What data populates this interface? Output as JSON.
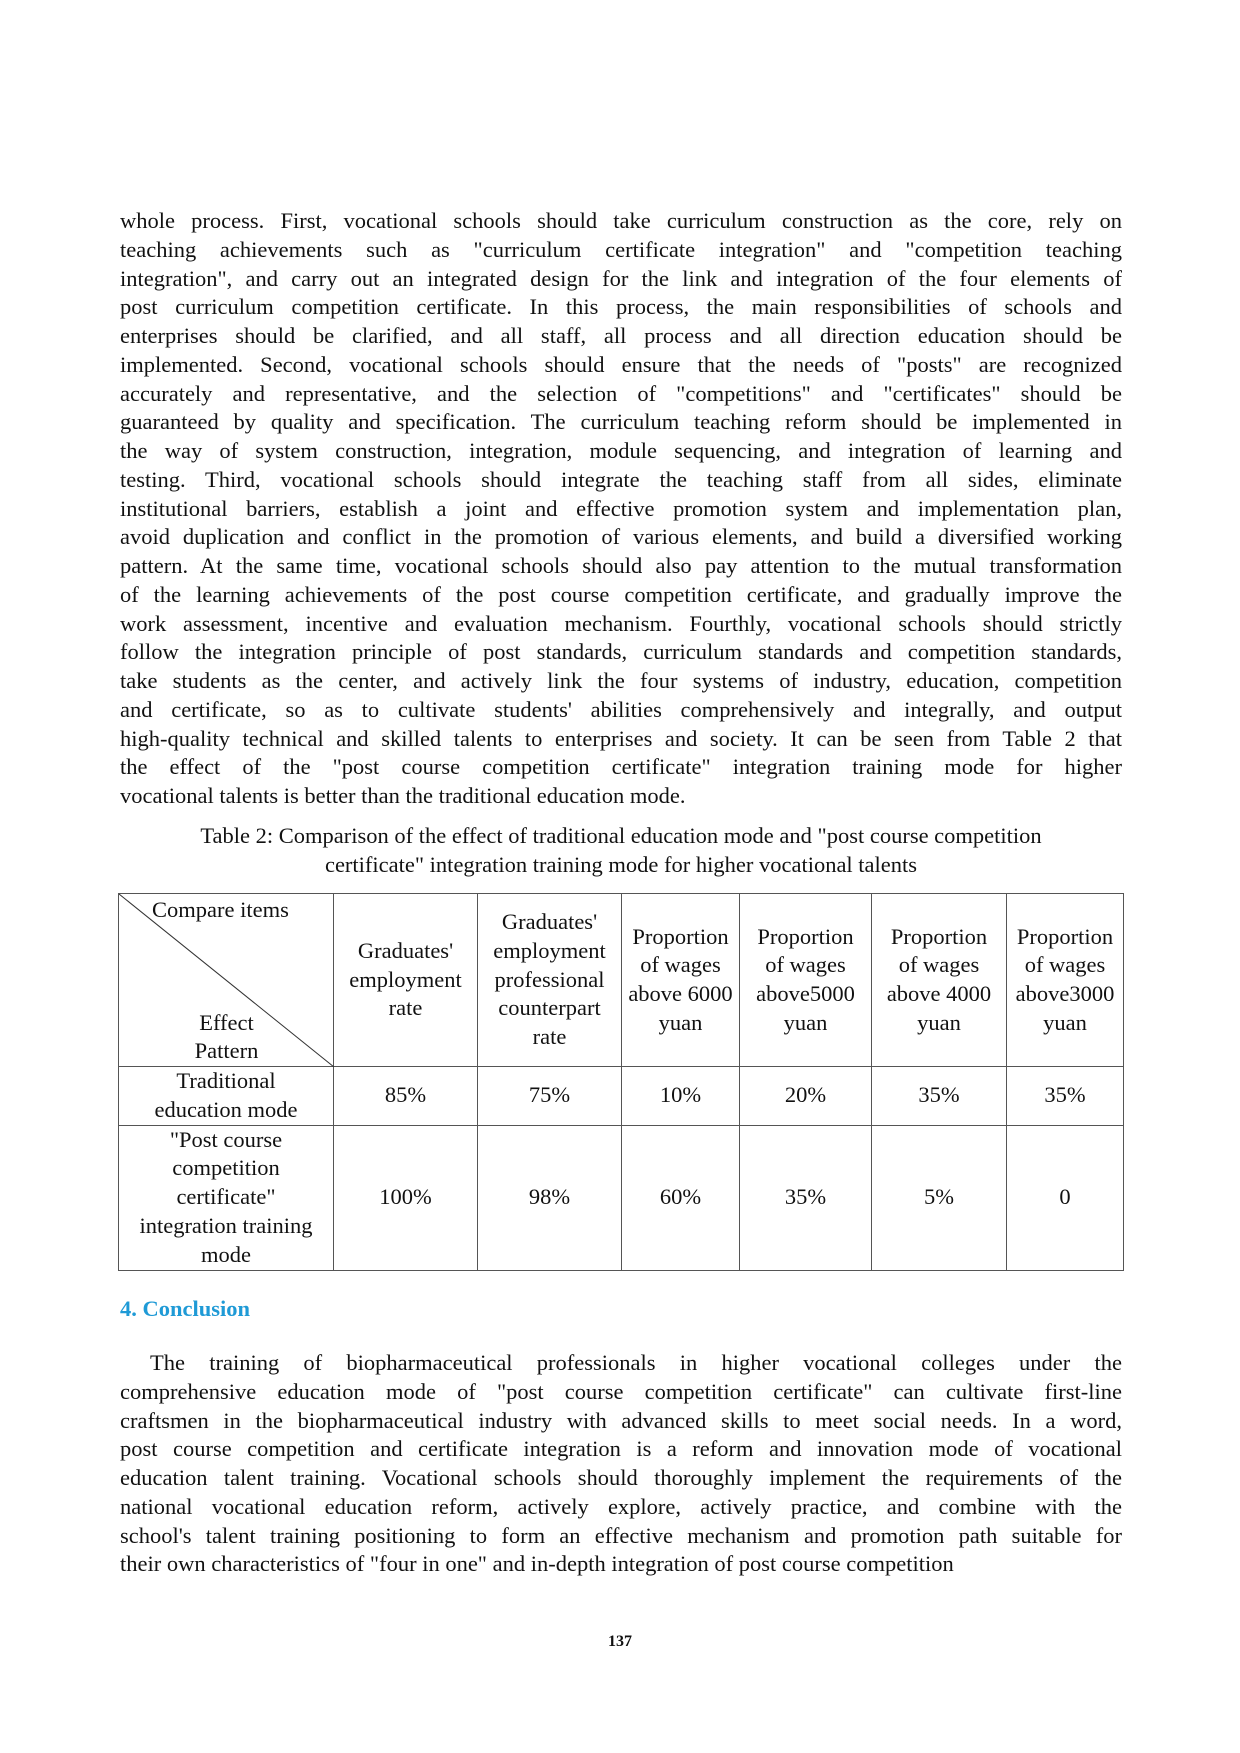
{
  "paragraph1": [
    "whole process. First, vocational schools should take curriculum construction as the core, rely on",
    "teaching achievements such as \"curriculum certificate integration\" and \"competition teaching",
    "integration\", and carry out an integrated design for the link and integration of the four elements of",
    "post curriculum competition certificate. In this process, the main responsibilities of schools and",
    "enterprises should be clarified, and all staff, all process and all direction education should be",
    "implemented. Second, vocational schools should ensure that the needs of \"posts\" are recognized",
    "accurately and representative, and the selection of \"competitions\" and \"certificates\" should be",
    "guaranteed by quality and specification. The curriculum teaching reform should be implemented in",
    "the way of system construction, integration, module sequencing, and integration of learning and",
    "testing. Third, vocational schools should integrate the teaching staff from all sides, eliminate",
    "institutional barriers, establish a joint and effective promotion system and implementation plan,",
    "avoid duplication and conflict in the promotion of various elements, and build a diversified working",
    "pattern. At the same time, vocational schools should also pay attention to the mutual transformation",
    "of the learning achievements of the post course competition certificate, and gradually improve the",
    "work assessment, incentive and evaluation mechanism. Fourthly, vocational schools should strictly",
    "follow the integration principle of post standards, curriculum standards and competition standards,",
    "take students as the center, and actively link the four systems of industry, education, competition",
    "and certificate, so as to cultivate students' abilities comprehensively and integrally, and output",
    "high-quality technical and skilled talents to enterprises and society. It can be seen from Table 2 that",
    "the effect of the \"post course competition certificate\" integration training mode for higher",
    "vocational talents is better than the traditional education mode."
  ],
  "table_caption": {
    "line1": "Table 2: Comparison of the effect of traditional education mode and \"post course competition",
    "line2": "certificate\" integration training mode for higher vocational talents"
  },
  "table": {
    "corner_top": "Compare items",
    "corner_bottom": [
      "Effect",
      "Pattern"
    ],
    "headers": [
      [
        "Graduates'",
        "employment",
        "rate"
      ],
      [
        "Graduates'",
        "employment",
        "professional",
        "counterpart",
        "rate"
      ],
      [
        "Proportion",
        "of wages",
        "above 6000",
        "yuan"
      ],
      [
        "Proportion",
        "of wages",
        "above5000",
        "yuan"
      ],
      [
        "Proportion",
        "of wages",
        "above 4000",
        "yuan"
      ],
      [
        "Proportion",
        "of wages",
        "above3000",
        "yuan"
      ]
    ],
    "rows": [
      {
        "label": [
          "Traditional",
          "education mode"
        ],
        "values": [
          "85%",
          "75%",
          "10%",
          "20%",
          "35%",
          "35%"
        ]
      },
      {
        "label": [
          "\"Post course",
          "competition",
          "certificate\"",
          "integration training",
          "mode"
        ],
        "values": [
          "100%",
          "98%",
          "60%",
          "35%",
          "5%",
          "0"
        ]
      }
    ]
  },
  "section_heading": "4. Conclusion",
  "heading_color": "#1f9ad6",
  "paragraph2": [
    "The training of biopharmaceutical professionals in higher vocational colleges under the",
    "comprehensive education mode of \"post course competition certificate\" can cultivate first-line",
    "craftsmen in the biopharmaceutical industry with advanced skills to meet social needs. In a word,",
    "post course competition and certificate integration is a reform and innovation mode of vocational",
    "education talent training. Vocational schools should thoroughly implement the requirements of the",
    "national vocational education reform, actively explore, actively practice, and combine with the",
    "school's talent training positioning to form an effective mechanism and promotion path suitable for",
    "their own characteristics of \"four in one\" and in-depth integration of post course competition"
  ],
  "page_number": "137"
}
